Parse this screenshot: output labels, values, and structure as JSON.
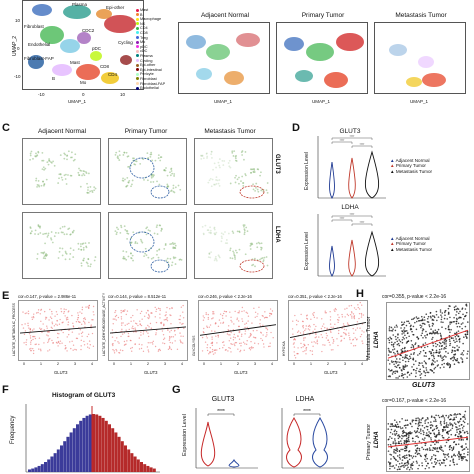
{
  "panels": {
    "C": "C",
    "D": "D",
    "E": "E",
    "F": "F",
    "G": "G",
    "H": "H"
  },
  "umap_top": {
    "xlabel": "UMAP_1",
    "ylabel": "UMAP_2",
    "titles": [
      "Adjacent Normal",
      "Primary Tumor",
      "Metastasis Tumor"
    ],
    "cluster_labels": [
      "Plasma",
      "Epi-other",
      "Fibroblast",
      "Fibroblast-FAP",
      "CDC2",
      "Cycling",
      "Endothelial",
      "pDC",
      "CD8",
      "CD4",
      "Mast",
      "B",
      "Mo"
    ],
    "legend": [
      {
        "name": "Mast",
        "color": "#e6194b"
      },
      {
        "name": "B",
        "color": "#f58231"
      },
      {
        "name": "Macrophage",
        "color": "#ffe119"
      },
      {
        "name": "NK",
        "color": "#bcf60c"
      },
      {
        "name": "CD4",
        "color": "#3cb44b"
      },
      {
        "name": "CD8",
        "color": "#46f0f0"
      },
      {
        "name": "Treg",
        "color": "#4363d8"
      },
      {
        "name": "Mo",
        "color": "#911eb4"
      },
      {
        "name": "pDC",
        "color": "#f032e6"
      },
      {
        "name": "cDC",
        "color": "#fabebe"
      },
      {
        "name": "Plasma",
        "color": "#008080"
      },
      {
        "name": "Cycling",
        "color": "#e6beff"
      },
      {
        "name": "Epi-other",
        "color": "#9a6324"
      },
      {
        "name": "Epi-intestinal",
        "color": "#800000"
      },
      {
        "name": "Pericyte",
        "color": "#aaffc3"
      },
      {
        "name": "Fibroblast",
        "color": "#808000"
      },
      {
        "name": "Fibroblast-FAP",
        "color": "#ffd8b1"
      },
      {
        "name": "Endothelial",
        "color": "#000075"
      }
    ],
    "ticks": [
      "-10",
      "0",
      "10"
    ],
    "yticks": [
      "10",
      "0",
      "-10"
    ]
  },
  "umap_mid": {
    "titles": [
      "Adjacent Normal",
      "Primary Tumor",
      "Metastasis Tumor"
    ],
    "genes": [
      "GLUT3",
      "LDHA"
    ]
  },
  "violin_d": {
    "titles": [
      "GLUT3",
      "LDHA"
    ],
    "ylabel": "Expression Level",
    "legend": [
      {
        "name": "Adjacent Normal",
        "color": "#1f3a93"
      },
      {
        "name": "Primary Tumor",
        "color": "#c0392b"
      },
      {
        "name": "Metastasis Tumor",
        "color": "#111111"
      }
    ],
    "sig": "****"
  },
  "scatter_e": [
    {
      "cor": "cor=0.147, p-value = 2.986e-11",
      "ylabel": "LACTATE_METABOLIC_PROCESS",
      "xlabel": "GLUT3"
    },
    {
      "cor": "cor=0.144, p-value = 8.512e-11",
      "ylabel": "LACTATE_DEHYDROGENASE_ACTIVITY",
      "xlabel": "GLUT3"
    },
    {
      "cor": "cor=0.246, p-value < 2.2e-16",
      "ylabel": "GLYCOLYSIS",
      "xlabel": "GLUT3"
    },
    {
      "cor": "cor=0.351, p-value < 2.2e-16",
      "ylabel": "HYPOXIA",
      "xlabel": "GLUT3"
    }
  ],
  "scatter_ticks": [
    "0",
    "1",
    "2",
    "3",
    "4"
  ],
  "hist_f": {
    "title": "Histogram of GLUT3",
    "ylabel": "Frequency"
  },
  "violin_g": {
    "titles": [
      "GLUT3",
      "LDHA"
    ],
    "ylabel": "Expression Level",
    "sig": "****"
  },
  "scatter_h": [
    {
      "cor": "cor=0.355, p-value < 2.2e-16",
      "ylabel_top": "Metastasis Tumor",
      "ylabel_gene": "LDHA",
      "xlabel": "GLUT3"
    },
    {
      "cor": "cor=0.167, p-value < 2.2e-16",
      "ylabel_top": "Primary Tumor",
      "ylabel_gene": "LDHA"
    }
  ]
}
